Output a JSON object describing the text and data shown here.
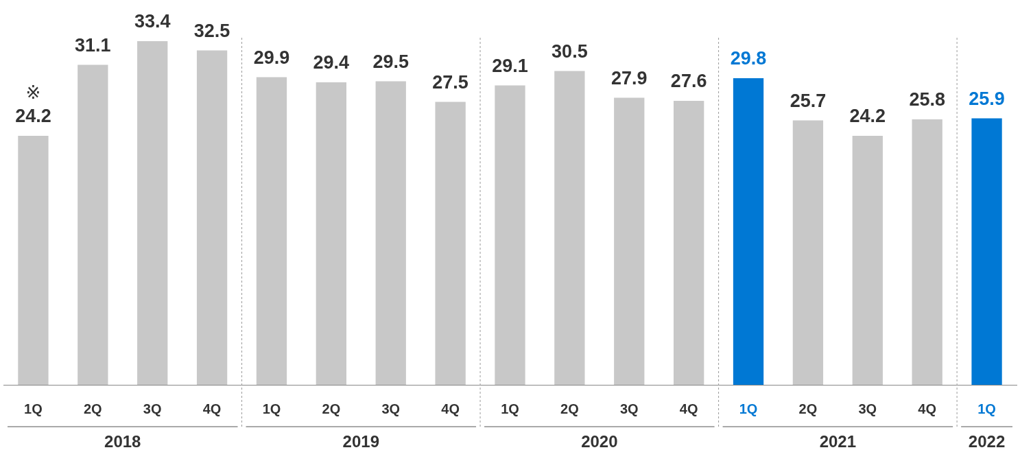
{
  "chart_data": {
    "type": "bar",
    "categories": [
      "1Q",
      "2Q",
      "3Q",
      "4Q",
      "1Q",
      "2Q",
      "3Q",
      "4Q",
      "1Q",
      "2Q",
      "3Q",
      "4Q",
      "1Q",
      "2Q",
      "3Q",
      "4Q",
      "1Q"
    ],
    "values": [
      24.2,
      31.1,
      33.4,
      32.5,
      29.9,
      29.4,
      29.5,
      27.5,
      29.1,
      30.5,
      27.9,
      27.6,
      29.8,
      25.7,
      24.2,
      25.8,
      25.9
    ],
    "color": "#c8c8c8",
    "colors": [
      "#c8c8c8",
      "#c8c8c8",
      "#c8c8c8",
      "#c8c8c8",
      "#c8c8c8",
      "#c8c8c8",
      "#c8c8c8",
      "#c8c8c8",
      "#c8c8c8",
      "#c8c8c8",
      "#c8c8c8",
      "#c8c8c8",
      "#0078d4",
      "#c8c8c8",
      "#c8c8c8",
      "#c8c8c8",
      "#0078d4"
    ],
    "data_labels": true,
    "grid": false,
    "legend": false,
    "annotations": [
      {
        "text": "※",
        "x": "1Q",
        "y": 24.2
      },
      "2018",
      "2019",
      "2020",
      "2021",
      "2022"
    ]
  }
}
